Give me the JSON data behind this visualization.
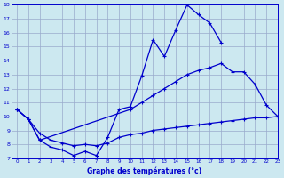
{
  "x_labels": [
    0,
    1,
    2,
    3,
    4,
    5,
    6,
    7,
    8,
    9,
    10,
    11,
    12,
    13,
    14,
    15,
    16,
    17,
    18,
    19,
    20,
    21,
    22,
    23
  ],
  "line_a_x": [
    0,
    1,
    2,
    3,
    4,
    5,
    6,
    7,
    8,
    9,
    10,
    11,
    12,
    13,
    14,
    15,
    16,
    17,
    18
  ],
  "line_a_y": [
    10.5,
    9.8,
    8.3,
    7.8,
    7.6,
    7.2,
    7.5,
    7.2,
    8.5,
    10.5,
    10.7,
    12.9,
    15.5,
    14.3,
    16.2,
    18.0,
    17.3,
    16.7,
    15.3
  ],
  "line_b_x": [
    0,
    1,
    2,
    10,
    11,
    12,
    13,
    14,
    15,
    16,
    17,
    18,
    19,
    20,
    21,
    22,
    23
  ],
  "line_b_y": [
    10.5,
    9.8,
    8.3,
    10.5,
    11.0,
    11.5,
    12.0,
    12.5,
    13.0,
    13.3,
    13.5,
    13.8,
    13.2,
    13.2,
    12.3,
    10.8,
    10.0
  ],
  "line_c_x": [
    0,
    1,
    2,
    3,
    4,
    5,
    6,
    7,
    8,
    9,
    10,
    11,
    12,
    13,
    14,
    15,
    16,
    17,
    18,
    19,
    20,
    21,
    22,
    23
  ],
  "line_c_y": [
    10.5,
    9.8,
    8.8,
    8.3,
    8.1,
    7.9,
    8.0,
    7.9,
    8.1,
    8.5,
    8.7,
    8.8,
    9.0,
    9.1,
    9.2,
    9.3,
    9.4,
    9.5,
    9.6,
    9.7,
    9.8,
    9.9,
    9.9,
    10.0
  ],
  "ylim": [
    7,
    18
  ],
  "xlim": [
    -0.5,
    23
  ],
  "yticks": [
    7,
    8,
    9,
    10,
    11,
    12,
    13,
    14,
    15,
    16,
    17,
    18
  ],
  "xticks": [
    0,
    1,
    2,
    3,
    4,
    5,
    6,
    7,
    8,
    9,
    10,
    11,
    12,
    13,
    14,
    15,
    16,
    17,
    18,
    19,
    20,
    21,
    22,
    23
  ],
  "line_color": "#0000cc",
  "bg_color": "#cce8f0",
  "grid_color": "#99aacc",
  "xlabel": "Graphe des températures (°c)"
}
